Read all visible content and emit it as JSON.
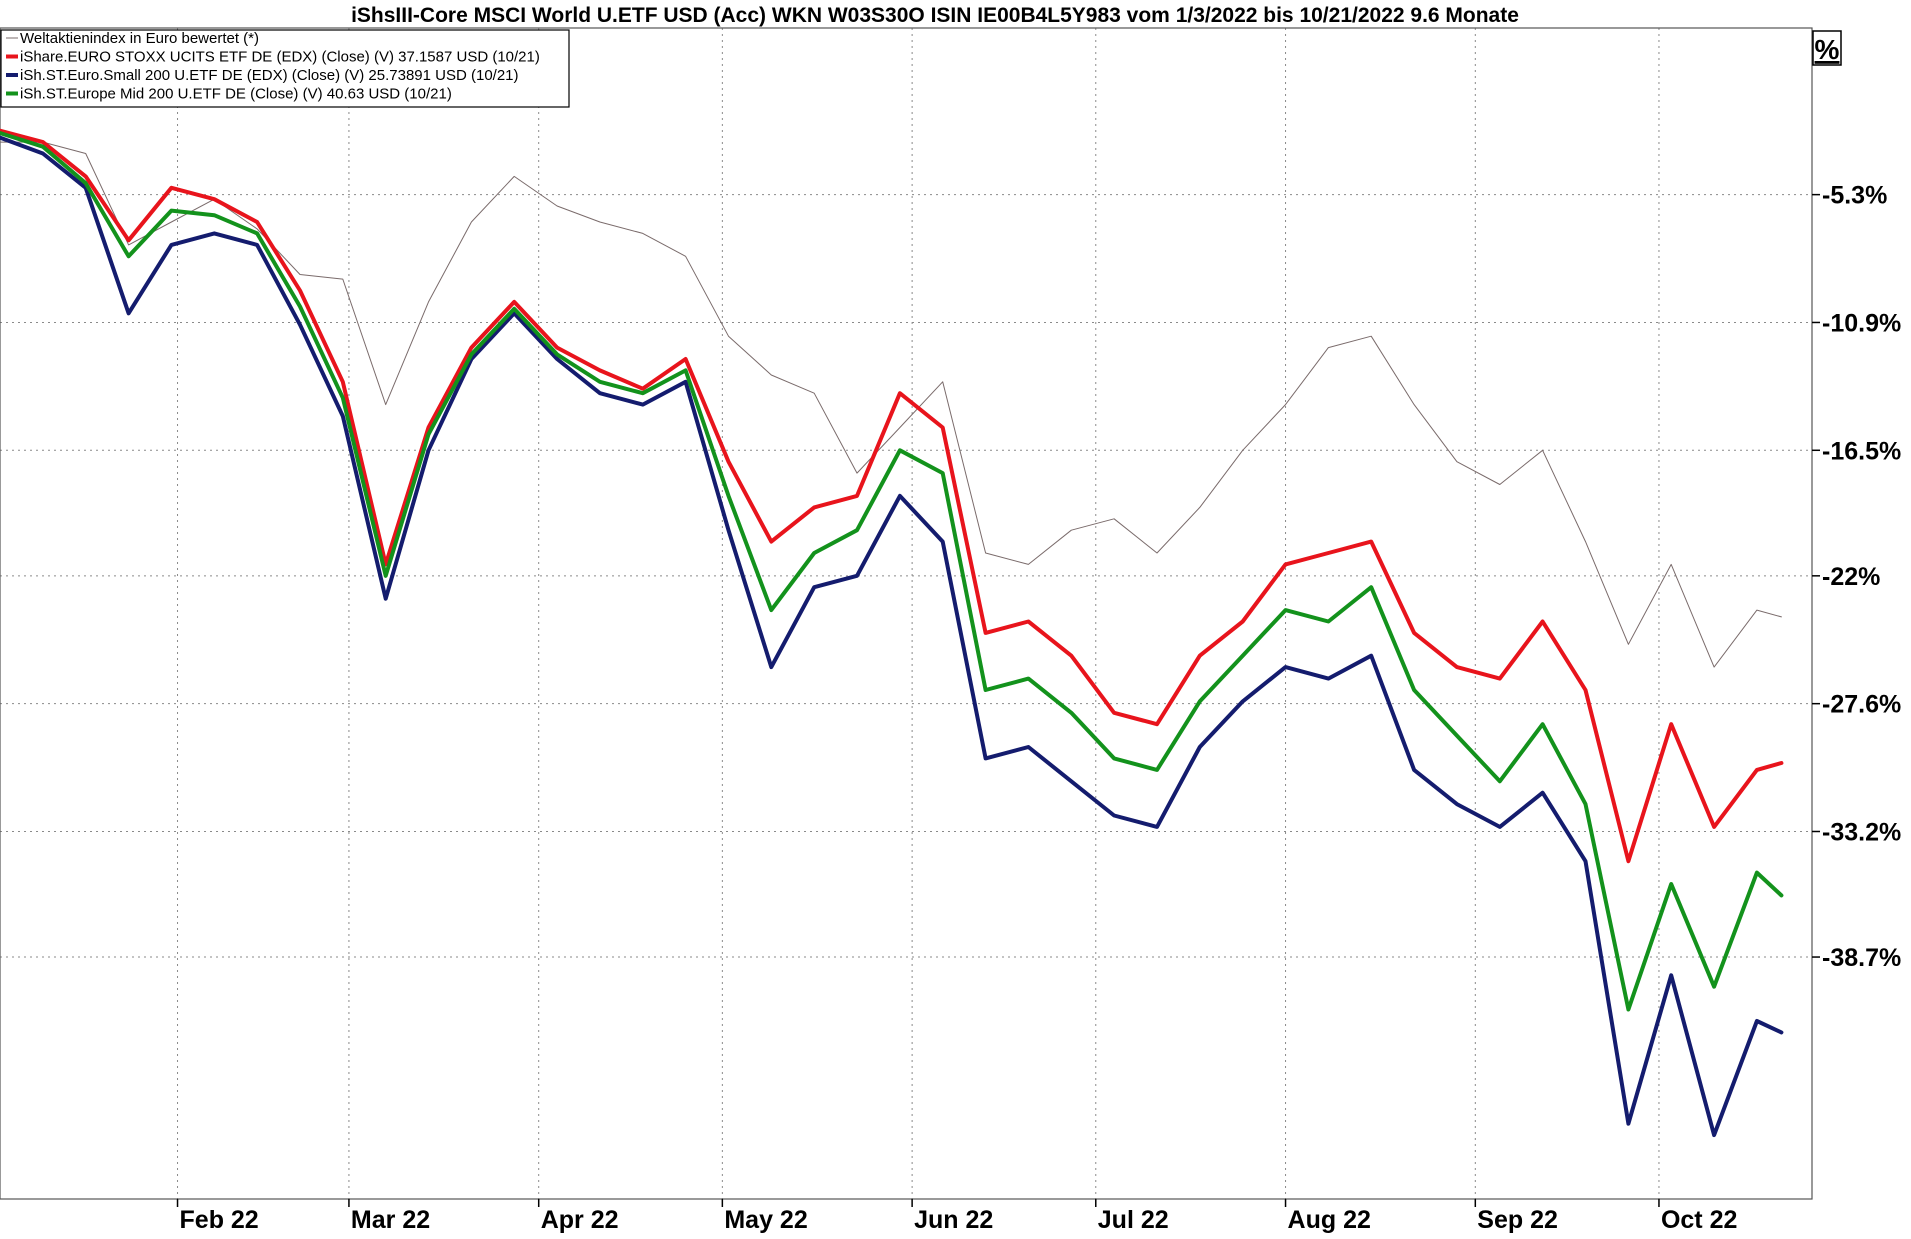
{
  "chart_data": {
    "type": "line",
    "title": "iShsIII-Core MSCI World U.ETF USD (Acc) WKN W03S30O ISIN IE00B4L5Y983 vom 1/3/2022 bis 10/21/2022 9.6 Monate",
    "unit_label": "%",
    "xlabel": "",
    "ylabel": "",
    "ylim": [
      -49.3,
      2.0
    ],
    "y_ticks": [
      {
        "value": -5.3,
        "label": "-5.3%"
      },
      {
        "value": -10.9,
        "label": "-10.9%"
      },
      {
        "value": -16.5,
        "label": "-16.5%"
      },
      {
        "value": -22.0,
        "label": "-22%"
      },
      {
        "value": -27.6,
        "label": "-27.6%"
      },
      {
        "value": -33.2,
        "label": "-33.2%"
      },
      {
        "value": -38.7,
        "label": "-38.7%"
      }
    ],
    "x_ticks": [
      {
        "date": "2022-02-01",
        "label": "Feb 22"
      },
      {
        "date": "2022-03-01",
        "label": "Mar 22"
      },
      {
        "date": "2022-04-01",
        "label": "Apr 22"
      },
      {
        "date": "2022-05-01",
        "label": "May 22"
      },
      {
        "date": "2022-06-01",
        "label": "Jun 22"
      },
      {
        "date": "2022-07-01",
        "label": "Jul 22"
      },
      {
        "date": "2022-08-01",
        "label": "Aug 22"
      },
      {
        "date": "2022-09-01",
        "label": "Sep 22"
      },
      {
        "date": "2022-10-01",
        "label": "Oct 22"
      }
    ],
    "grid": true,
    "legend_position": "top-left",
    "series": [
      {
        "name": "Weltaktienindex in Euro bewertet (*)",
        "color": "#7a6b6b",
        "width": 1,
        "points": [
          [
            "2022-01-03",
            -3.0
          ],
          [
            "2022-01-10",
            -3.0
          ],
          [
            "2022-01-17",
            -3.5
          ],
          [
            "2022-01-24",
            -7.5
          ],
          [
            "2022-01-31",
            -6.5
          ],
          [
            "2022-02-07",
            -5.5
          ],
          [
            "2022-02-14",
            -6.8
          ],
          [
            "2022-02-21",
            -8.8
          ],
          [
            "2022-02-28",
            -9.0
          ],
          [
            "2022-03-07",
            -14.5
          ],
          [
            "2022-03-14",
            -10.0
          ],
          [
            "2022-03-21",
            -6.5
          ],
          [
            "2022-03-28",
            -4.5
          ],
          [
            "2022-04-04",
            -5.8
          ],
          [
            "2022-04-11",
            -6.5
          ],
          [
            "2022-04-18",
            -7.0
          ],
          [
            "2022-04-25",
            -8.0
          ],
          [
            "2022-05-02",
            -11.5
          ],
          [
            "2022-05-09",
            -13.2
          ],
          [
            "2022-05-16",
            -14.0
          ],
          [
            "2022-05-23",
            -17.5
          ],
          [
            "2022-05-30",
            -15.5
          ],
          [
            "2022-06-06",
            -13.5
          ],
          [
            "2022-06-13",
            -21.0
          ],
          [
            "2022-06-20",
            -21.5
          ],
          [
            "2022-06-27",
            -20.0
          ],
          [
            "2022-07-04",
            -19.5
          ],
          [
            "2022-07-11",
            -21.0
          ],
          [
            "2022-07-18",
            -19.0
          ],
          [
            "2022-07-25",
            -16.5
          ],
          [
            "2022-08-01",
            -14.5
          ],
          [
            "2022-08-08",
            -12.0
          ],
          [
            "2022-08-15",
            -11.5
          ],
          [
            "2022-08-22",
            -14.5
          ],
          [
            "2022-08-29",
            -17.0
          ],
          [
            "2022-09-05",
            -18.0
          ],
          [
            "2022-09-12",
            -16.5
          ],
          [
            "2022-09-19",
            -20.5
          ],
          [
            "2022-09-26",
            -25.0
          ],
          [
            "2022-10-03",
            -21.5
          ],
          [
            "2022-10-10",
            -26.0
          ],
          [
            "2022-10-17",
            -23.5
          ],
          [
            "2022-10-21",
            -23.8
          ]
        ]
      },
      {
        "name": "iShare.EURO STOXX UCITS ETF DE (EDX) (Close) (V) 37.1587 USD (10/21)",
        "color": "#e8141c",
        "width": 4,
        "points": [
          [
            "2022-01-03",
            -2.5
          ],
          [
            "2022-01-10",
            -3.0
          ],
          [
            "2022-01-17",
            -4.5
          ],
          [
            "2022-01-24",
            -7.3
          ],
          [
            "2022-01-31",
            -5.0
          ],
          [
            "2022-02-07",
            -5.5
          ],
          [
            "2022-02-14",
            -6.5
          ],
          [
            "2022-02-21",
            -9.5
          ],
          [
            "2022-02-28",
            -13.5
          ],
          [
            "2022-03-07",
            -21.5
          ],
          [
            "2022-03-14",
            -15.5
          ],
          [
            "2022-03-21",
            -12.0
          ],
          [
            "2022-03-28",
            -10.0
          ],
          [
            "2022-04-04",
            -12.0
          ],
          [
            "2022-04-11",
            -13.0
          ],
          [
            "2022-04-18",
            -13.8
          ],
          [
            "2022-04-25",
            -12.5
          ],
          [
            "2022-05-02",
            -17.0
          ],
          [
            "2022-05-09",
            -20.5
          ],
          [
            "2022-05-16",
            -19.0
          ],
          [
            "2022-05-23",
            -18.5
          ],
          [
            "2022-05-30",
            -14.0
          ],
          [
            "2022-06-06",
            -15.5
          ],
          [
            "2022-06-13",
            -24.5
          ],
          [
            "2022-06-20",
            -24.0
          ],
          [
            "2022-06-27",
            -25.5
          ],
          [
            "2022-07-04",
            -28.0
          ],
          [
            "2022-07-11",
            -28.5
          ],
          [
            "2022-07-18",
            -25.5
          ],
          [
            "2022-07-25",
            -24.0
          ],
          [
            "2022-08-01",
            -21.5
          ],
          [
            "2022-08-08",
            -21.0
          ],
          [
            "2022-08-15",
            -20.5
          ],
          [
            "2022-08-22",
            -24.5
          ],
          [
            "2022-08-29",
            -26.0
          ],
          [
            "2022-09-05",
            -26.5
          ],
          [
            "2022-09-12",
            -24.0
          ],
          [
            "2022-09-19",
            -27.0
          ],
          [
            "2022-09-26",
            -34.5
          ],
          [
            "2022-10-03",
            -28.5
          ],
          [
            "2022-10-10",
            -33.0
          ],
          [
            "2022-10-17",
            -30.5
          ],
          [
            "2022-10-21",
            -30.2
          ]
        ]
      },
      {
        "name": "iSh.ST.Euro.Small 200 U.ETF DE (EDX) (Close) (V) 25.73891 USD (10/21)",
        "color": "#141c6e",
        "width": 4,
        "points": [
          [
            "2022-01-03",
            -2.8
          ],
          [
            "2022-01-10",
            -3.5
          ],
          [
            "2022-01-17",
            -5.0
          ],
          [
            "2022-01-24",
            -10.5
          ],
          [
            "2022-01-31",
            -7.5
          ],
          [
            "2022-02-07",
            -7.0
          ],
          [
            "2022-02-14",
            -7.5
          ],
          [
            "2022-02-21",
            -11.0
          ],
          [
            "2022-02-28",
            -15.0
          ],
          [
            "2022-03-07",
            -23.0
          ],
          [
            "2022-03-14",
            -16.5
          ],
          [
            "2022-03-21",
            -12.5
          ],
          [
            "2022-03-28",
            -10.5
          ],
          [
            "2022-04-04",
            -12.5
          ],
          [
            "2022-04-11",
            -14.0
          ],
          [
            "2022-04-18",
            -14.5
          ],
          [
            "2022-04-25",
            -13.5
          ],
          [
            "2022-05-02",
            -20.0
          ],
          [
            "2022-05-09",
            -26.0
          ],
          [
            "2022-05-16",
            -22.5
          ],
          [
            "2022-05-23",
            -22.0
          ],
          [
            "2022-05-30",
            -18.5
          ],
          [
            "2022-06-06",
            -20.5
          ],
          [
            "2022-06-13",
            -30.0
          ],
          [
            "2022-06-20",
            -29.5
          ],
          [
            "2022-06-27",
            -31.0
          ],
          [
            "2022-07-04",
            -32.5
          ],
          [
            "2022-07-11",
            -33.0
          ],
          [
            "2022-07-18",
            -29.5
          ],
          [
            "2022-07-25",
            -27.5
          ],
          [
            "2022-08-01",
            -26.0
          ],
          [
            "2022-08-08",
            -26.5
          ],
          [
            "2022-08-15",
            -25.5
          ],
          [
            "2022-08-22",
            -30.5
          ],
          [
            "2022-08-29",
            -32.0
          ],
          [
            "2022-09-05",
            -33.0
          ],
          [
            "2022-09-12",
            -31.5
          ],
          [
            "2022-09-19",
            -34.5
          ],
          [
            "2022-09-26",
            -46.0
          ],
          [
            "2022-10-03",
            -39.5
          ],
          [
            "2022-10-10",
            -46.5
          ],
          [
            "2022-10-17",
            -41.5
          ],
          [
            "2022-10-21",
            -42.0
          ]
        ]
      },
      {
        "name": "iSh.ST.Europe Mid 200 U.ETF DE (Close) (V) 40.63 USD (10/21)",
        "color": "#13921c",
        "width": 4,
        "points": [
          [
            "2022-01-03",
            -2.6
          ],
          [
            "2022-01-10",
            -3.2
          ],
          [
            "2022-01-17",
            -4.8
          ],
          [
            "2022-01-24",
            -8.0
          ],
          [
            "2022-01-31",
            -6.0
          ],
          [
            "2022-02-07",
            -6.2
          ],
          [
            "2022-02-14",
            -7.0
          ],
          [
            "2022-02-21",
            -10.2
          ],
          [
            "2022-02-28",
            -14.2
          ],
          [
            "2022-03-07",
            -22.0
          ],
          [
            "2022-03-14",
            -15.8
          ],
          [
            "2022-03-21",
            -12.3
          ],
          [
            "2022-03-28",
            -10.3
          ],
          [
            "2022-04-04",
            -12.3
          ],
          [
            "2022-04-11",
            -13.5
          ],
          [
            "2022-04-18",
            -14.0
          ],
          [
            "2022-04-25",
            -13.0
          ],
          [
            "2022-05-02",
            -18.5
          ],
          [
            "2022-05-09",
            -23.5
          ],
          [
            "2022-05-16",
            -21.0
          ],
          [
            "2022-05-23",
            -20.0
          ],
          [
            "2022-05-30",
            -16.5
          ],
          [
            "2022-06-06",
            -17.5
          ],
          [
            "2022-06-13",
            -27.0
          ],
          [
            "2022-06-20",
            -26.5
          ],
          [
            "2022-06-27",
            -28.0
          ],
          [
            "2022-07-04",
            -30.0
          ],
          [
            "2022-07-11",
            -30.5
          ],
          [
            "2022-07-18",
            -27.5
          ],
          [
            "2022-07-25",
            -25.5
          ],
          [
            "2022-08-01",
            -23.5
          ],
          [
            "2022-08-08",
            -24.0
          ],
          [
            "2022-08-15",
            -22.5
          ],
          [
            "2022-08-22",
            -27.0
          ],
          [
            "2022-08-29",
            -29.0
          ],
          [
            "2022-09-05",
            -31.0
          ],
          [
            "2022-09-12",
            -28.5
          ],
          [
            "2022-09-19",
            -32.0
          ],
          [
            "2022-09-26",
            -41.0
          ],
          [
            "2022-10-03",
            -35.5
          ],
          [
            "2022-10-10",
            -40.0
          ],
          [
            "2022-10-17",
            -35.0
          ],
          [
            "2022-10-21",
            -36.0
          ]
        ]
      }
    ]
  }
}
